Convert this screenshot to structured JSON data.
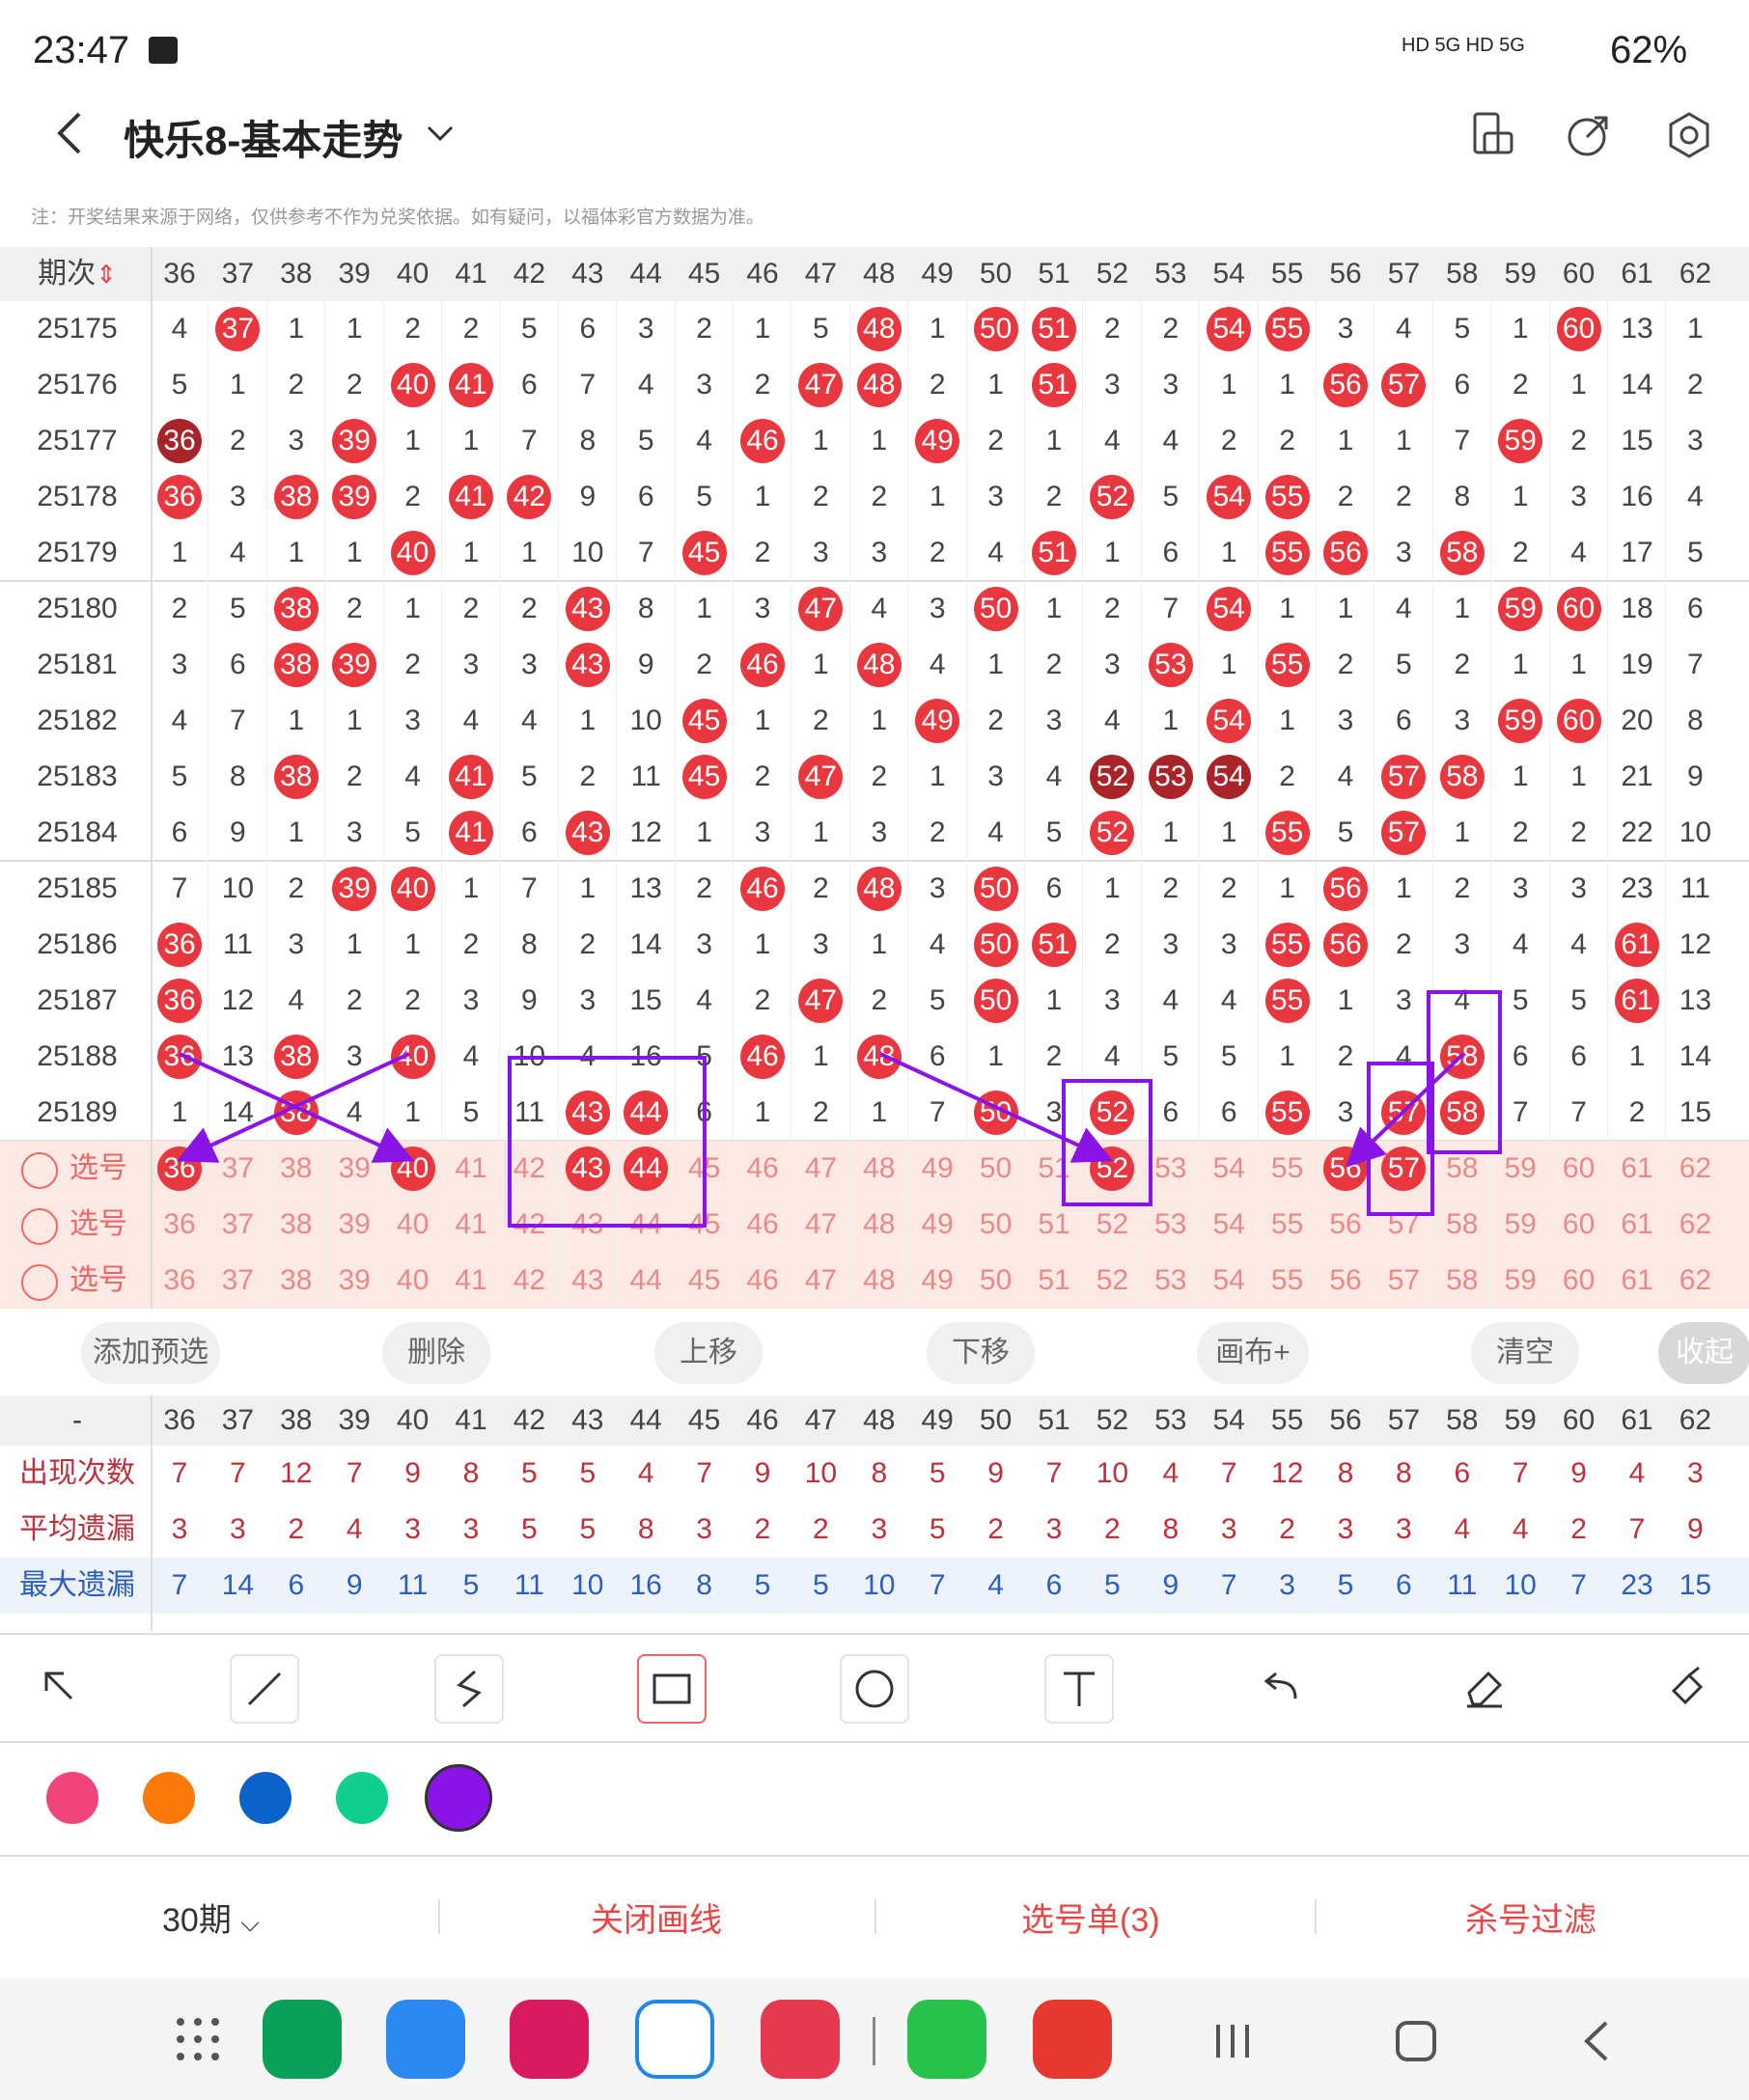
{
  "status": {
    "time": "23:47",
    "network": "HD 5G HD 5G",
    "battery": "62%"
  },
  "header": {
    "title": "快乐8-基本走势"
  },
  "notice": "注：开奖结果来源于网络，仅供参考不作为兑奖依据。如有疑问，以福体彩官方数据为准。",
  "table": {
    "period_header": "期次",
    "columns": [
      36,
      37,
      38,
      39,
      40,
      41,
      42,
      43,
      44,
      45,
      46,
      47,
      48,
      49,
      50,
      51,
      52,
      53,
      54,
      55,
      56,
      57,
      58,
      59,
      60,
      61,
      62
    ],
    "rows": [
      {
        "period": "25175",
        "values": [
          4,
          37,
          1,
          1,
          2,
          2,
          5,
          6,
          3,
          2,
          1,
          5,
          48,
          1,
          50,
          51,
          2,
          2,
          54,
          55,
          3,
          4,
          5,
          1,
          60,
          13,
          1
        ],
        "hits": [
          37,
          48,
          50,
          51,
          54,
          55,
          60
        ]
      },
      {
        "period": "25176",
        "values": [
          5,
          1,
          2,
          2,
          40,
          41,
          6,
          7,
          4,
          3,
          2,
          47,
          48,
          2,
          1,
          51,
          3,
          3,
          1,
          1,
          56,
          57,
          6,
          2,
          1,
          14,
          2
        ],
        "hits": [
          40,
          41,
          47,
          48,
          51,
          56,
          57
        ]
      },
      {
        "period": "25177",
        "values": [
          36,
          2,
          3,
          39,
          1,
          1,
          7,
          8,
          5,
          4,
          46,
          1,
          1,
          49,
          2,
          1,
          4,
          4,
          2,
          2,
          1,
          1,
          7,
          59,
          2,
          15,
          3
        ],
        "hits": [
          36,
          39,
          46,
          49,
          59
        ],
        "dark": [
          36
        ]
      },
      {
        "period": "25178",
        "values": [
          36,
          3,
          38,
          39,
          2,
          41,
          42,
          9,
          6,
          5,
          1,
          2,
          2,
          1,
          3,
          2,
          52,
          5,
          54,
          55,
          2,
          2,
          8,
          1,
          3,
          16,
          4
        ],
        "hits": [
          36,
          38,
          39,
          41,
          42,
          52,
          54,
          55
        ]
      },
      {
        "period": "25179",
        "values": [
          1,
          4,
          1,
          1,
          40,
          1,
          1,
          10,
          7,
          45,
          2,
          3,
          3,
          2,
          4,
          51,
          1,
          6,
          1,
          55,
          56,
          3,
          58,
          2,
          4,
          17,
          5
        ],
        "hits": [
          40,
          45,
          51,
          55,
          56,
          58
        ]
      },
      {
        "period": "25180",
        "values": [
          2,
          5,
          38,
          2,
          1,
          2,
          2,
          43,
          8,
          1,
          3,
          47,
          4,
          3,
          50,
          1,
          2,
          7,
          54,
          1,
          1,
          4,
          1,
          59,
          60,
          18,
          6
        ],
        "hits": [
          38,
          43,
          47,
          50,
          54,
          59,
          60
        ]
      },
      {
        "period": "25181",
        "values": [
          3,
          6,
          38,
          39,
          2,
          3,
          3,
          43,
          9,
          2,
          46,
          1,
          48,
          4,
          1,
          2,
          3,
          53,
          1,
          55,
          2,
          5,
          2,
          1,
          1,
          19,
          7
        ],
        "hits": [
          38,
          39,
          43,
          46,
          48,
          53,
          55
        ]
      },
      {
        "period": "25182",
        "values": [
          4,
          7,
          1,
          1,
          3,
          4,
          4,
          1,
          10,
          45,
          1,
          2,
          1,
          49,
          2,
          3,
          4,
          1,
          54,
          1,
          3,
          6,
          3,
          59,
          60,
          20,
          8
        ],
        "hits": [
          45,
          49,
          54,
          59,
          60
        ]
      },
      {
        "period": "25183",
        "values": [
          5,
          8,
          38,
          2,
          4,
          41,
          5,
          2,
          11,
          45,
          2,
          47,
          2,
          1,
          3,
          4,
          52,
          53,
          54,
          2,
          4,
          57,
          58,
          1,
          1,
          21,
          9
        ],
        "hits": [
          38,
          41,
          45,
          47,
          52,
          53,
          54,
          57,
          58
        ],
        "dark": [
          52,
          53,
          54
        ]
      },
      {
        "period": "25184",
        "values": [
          6,
          9,
          1,
          3,
          5,
          41,
          6,
          43,
          12,
          1,
          3,
          1,
          3,
          2,
          4,
          5,
          52,
          1,
          1,
          55,
          5,
          57,
          1,
          2,
          2,
          22,
          10
        ],
        "hits": [
          41,
          43,
          52,
          55,
          57
        ]
      },
      {
        "period": "25185",
        "values": [
          7,
          10,
          2,
          39,
          40,
          1,
          7,
          1,
          13,
          2,
          46,
          2,
          48,
          3,
          50,
          6,
          1,
          2,
          2,
          1,
          56,
          1,
          2,
          3,
          3,
          23,
          11
        ],
        "hits": [
          39,
          40,
          46,
          48,
          50,
          56
        ]
      },
      {
        "period": "25186",
        "values": [
          36,
          11,
          3,
          1,
          1,
          2,
          8,
          2,
          14,
          3,
          1,
          3,
          1,
          4,
          50,
          51,
          2,
          3,
          3,
          55,
          56,
          2,
          3,
          4,
          4,
          61,
          12
        ],
        "hits": [
          36,
          50,
          51,
          55,
          56,
          61
        ]
      },
      {
        "period": "25187",
        "values": [
          36,
          12,
          4,
          2,
          2,
          3,
          9,
          3,
          15,
          4,
          2,
          47,
          2,
          5,
          50,
          1,
          3,
          4,
          4,
          55,
          1,
          3,
          4,
          5,
          5,
          61,
          13
        ],
        "hits": [
          36,
          47,
          50,
          55,
          61
        ]
      },
      {
        "period": "25188",
        "values": [
          36,
          13,
          38,
          3,
          40,
          4,
          10,
          4,
          16,
          5,
          46,
          1,
          48,
          6,
          1,
          2,
          4,
          5,
          5,
          1,
          2,
          4,
          58,
          6,
          6,
          1,
          14
        ],
        "hits": [
          36,
          38,
          40,
          46,
          48,
          58
        ]
      },
      {
        "period": "25189",
        "values": [
          1,
          14,
          38,
          4,
          1,
          5,
          11,
          43,
          44,
          6,
          1,
          2,
          1,
          7,
          50,
          3,
          52,
          6,
          6,
          55,
          3,
          57,
          58,
          7,
          7,
          2,
          15
        ],
        "hits": [
          38,
          43,
          44,
          50,
          52,
          55,
          57,
          58
        ]
      }
    ],
    "pick_rows": [
      {
        "label": "选号",
        "selected": [
          36,
          40,
          43,
          44,
          52,
          56,
          57
        ]
      },
      {
        "label": "选号",
        "selected": []
      },
      {
        "label": "选号",
        "selected": []
      }
    ]
  },
  "actions": [
    "添加预选",
    "删除",
    "上移",
    "下移",
    "画布+",
    "清空",
    "收起"
  ],
  "stats": {
    "header_label": "-",
    "rows": [
      {
        "label": "出现次数",
        "color": "#c0303a",
        "values": [
          7,
          7,
          12,
          7,
          9,
          8,
          5,
          5,
          4,
          7,
          9,
          10,
          8,
          5,
          9,
          7,
          10,
          4,
          7,
          12,
          8,
          8,
          6,
          7,
          9,
          4,
          3
        ]
      },
      {
        "label": "平均遗漏",
        "color": "#c0303a",
        "values": [
          3,
          3,
          2,
          4,
          3,
          3,
          5,
          5,
          8,
          3,
          2,
          2,
          3,
          5,
          2,
          3,
          2,
          8,
          3,
          2,
          3,
          3,
          4,
          4,
          2,
          7,
          9
        ]
      },
      {
        "label": "最大遗漏",
        "color": "#2a5fc1",
        "values": [
          7,
          14,
          6,
          9,
          11,
          5,
          11,
          10,
          16,
          8,
          5,
          5,
          10,
          7,
          4,
          6,
          5,
          9,
          7,
          3,
          5,
          6,
          11,
          10,
          7,
          23,
          15
        ]
      }
    ]
  },
  "tools": [
    "pointer-tool",
    "line-tool",
    "freehand-tool",
    "rectangle-tool",
    "circle-tool",
    "text-tool",
    "undo-tool",
    "eraser-tool",
    "clear-tool"
  ],
  "colors": [
    "#f0457a",
    "#f97a0a",
    "#0b63c9",
    "#10cf8e",
    "#8a14e8"
  ],
  "bottom": {
    "period_select": "30期",
    "close_lines": "关闭画线",
    "pick_list": "选号单(3)",
    "filter": "杀号过滤"
  },
  "apps": [
    "phone-app",
    "messages-app",
    "gallery-app",
    "ai-app",
    "camera-app",
    "wechat-app",
    "notes-app"
  ]
}
